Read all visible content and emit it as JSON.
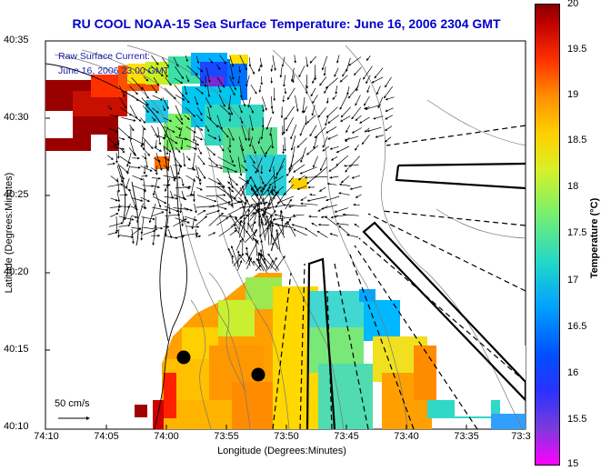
{
  "title": "RU COOL  NOAA-15  Sea Surface Temperature:  June 16, 2006 2304 GMT",
  "current_label_line1": "Raw Surface Current:",
  "current_label_line2": "June 16, 2006 23:00 GMT",
  "scale_label": "50 cm/s",
  "y_axis_label": "Latitude (Degrees:Minutes)",
  "x_axis_label": "Longitude (Degrees:Minutes)",
  "lat_ticks": [
    "40:35",
    "40:30",
    "40:25",
    "40:20",
    "40:15",
    "40:10"
  ],
  "lon_ticks": [
    "74:10",
    "74:05",
    "74:00",
    "73:55",
    "73:50",
    "73:45",
    "73:40",
    "73:35",
    "73:3"
  ],
  "colorbar": {
    "label": "Temperature (°C)",
    "ticks": [
      "20",
      "19.5",
      "19",
      "18.5",
      "18",
      "17.5",
      "17",
      "16.5",
      "16",
      "15.5",
      "15"
    ],
    "min": 15,
    "max": 20
  },
  "colors": {
    "title": "#0000cc",
    "current_label": "#1a1aaa",
    "land": "#ffffff",
    "vectors": "#000000"
  }
}
